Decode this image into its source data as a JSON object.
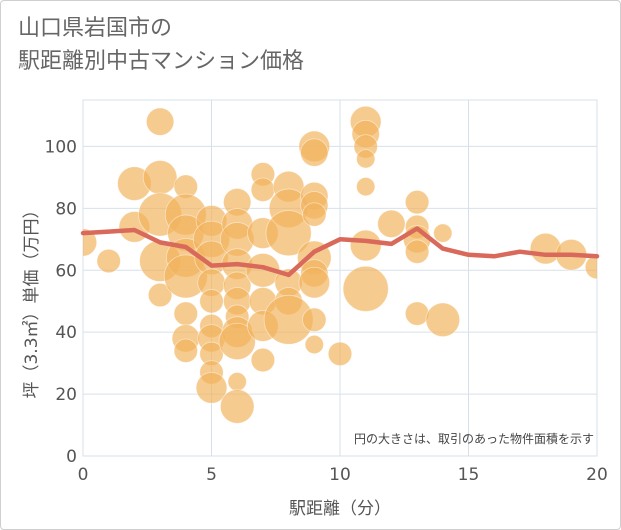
{
  "title_lines": [
    "山口県岩国市の",
    "駅距離別中古マンション価格"
  ],
  "chart_data": {
    "type": "scatter",
    "title": "山口県岩国市の駅距離別中古マンション価格",
    "xlabel": "駅距離（分）",
    "ylabel": "坪（3.3㎡）単価（万円）",
    "xlim": [
      0,
      20
    ],
    "ylim": [
      0,
      115
    ],
    "xticks": [
      0,
      5,
      10,
      15,
      20
    ],
    "yticks": [
      0,
      20,
      40,
      60,
      80,
      100
    ],
    "grid": true,
    "note": "円の大きさは、取引のあった物件面積を示す",
    "colors": {
      "bubble": "#f2b25c",
      "line": "#d9695a",
      "grid": "#d7e0ea"
    },
    "bubbles": [
      {
        "x": 0,
        "y": 69,
        "s": 3
      },
      {
        "x": 1,
        "y": 63,
        "s": 2
      },
      {
        "x": 2,
        "y": 88,
        "s": 5
      },
      {
        "x": 2,
        "y": 74,
        "s": 4
      },
      {
        "x": 3,
        "y": 108,
        "s": 3
      },
      {
        "x": 3,
        "y": 90,
        "s": 5
      },
      {
        "x": 3,
        "y": 78,
        "s": 9
      },
      {
        "x": 3,
        "y": 63,
        "s": 8
      },
      {
        "x": 3,
        "y": 52,
        "s": 2
      },
      {
        "x": 4,
        "y": 87,
        "s": 2
      },
      {
        "x": 4,
        "y": 78,
        "s": 8
      },
      {
        "x": 4,
        "y": 72,
        "s": 6
      },
      {
        "x": 4,
        "y": 64,
        "s": 7
      },
      {
        "x": 4,
        "y": 58,
        "s": 9
      },
      {
        "x": 4,
        "y": 46,
        "s": 2
      },
      {
        "x": 4,
        "y": 38,
        "s": 3
      },
      {
        "x": 4,
        "y": 34,
        "s": 2
      },
      {
        "x": 5,
        "y": 76,
        "s": 4
      },
      {
        "x": 5,
        "y": 70,
        "s": 6
      },
      {
        "x": 5,
        "y": 64,
        "s": 5
      },
      {
        "x": 5,
        "y": 56,
        "s": 3
      },
      {
        "x": 5,
        "y": 50,
        "s": 2
      },
      {
        "x": 5,
        "y": 42,
        "s": 2
      },
      {
        "x": 5,
        "y": 38,
        "s": 3
      },
      {
        "x": 5,
        "y": 33,
        "s": 2
      },
      {
        "x": 5,
        "y": 27,
        "s": 2
      },
      {
        "x": 5,
        "y": 22,
        "s": 4
      },
      {
        "x": 6,
        "y": 82,
        "s": 3
      },
      {
        "x": 6,
        "y": 75,
        "s": 4
      },
      {
        "x": 6,
        "y": 70,
        "s": 5
      },
      {
        "x": 6,
        "y": 62,
        "s": 4
      },
      {
        "x": 6,
        "y": 55,
        "s": 3
      },
      {
        "x": 6,
        "y": 50,
        "s": 3
      },
      {
        "x": 6,
        "y": 45,
        "s": 2
      },
      {
        "x": 6,
        "y": 40,
        "s": 4
      },
      {
        "x": 6,
        "y": 37,
        "s": 6
      },
      {
        "x": 6,
        "y": 24,
        "s": 1
      },
      {
        "x": 6,
        "y": 16,
        "s": 5
      },
      {
        "x": 7,
        "y": 91,
        "s": 2
      },
      {
        "x": 7,
        "y": 86,
        "s": 2
      },
      {
        "x": 7,
        "y": 72,
        "s": 4
      },
      {
        "x": 7,
        "y": 60,
        "s": 5
      },
      {
        "x": 7,
        "y": 50,
        "s": 3
      },
      {
        "x": 7,
        "y": 42,
        "s": 4
      },
      {
        "x": 7,
        "y": 31,
        "s": 2
      },
      {
        "x": 8,
        "y": 87,
        "s": 4
      },
      {
        "x": 8,
        "y": 80,
        "s": 7
      },
      {
        "x": 8,
        "y": 72,
        "s": 10
      },
      {
        "x": 8,
        "y": 56,
        "s": 3
      },
      {
        "x": 8,
        "y": 50,
        "s": 3
      },
      {
        "x": 8,
        "y": 44,
        "s": 12
      },
      {
        "x": 9,
        "y": 100,
        "s": 4
      },
      {
        "x": 9,
        "y": 98,
        "s": 3
      },
      {
        "x": 9,
        "y": 84,
        "s": 3
      },
      {
        "x": 9,
        "y": 81,
        "s": 3
      },
      {
        "x": 9,
        "y": 78,
        "s": 2
      },
      {
        "x": 9,
        "y": 64,
        "s": 5
      },
      {
        "x": 9,
        "y": 59,
        "s": 3
      },
      {
        "x": 9,
        "y": 56,
        "s": 4
      },
      {
        "x": 9,
        "y": 44,
        "s": 2
      },
      {
        "x": 9,
        "y": 36,
        "s": 1
      },
      {
        "x": 10,
        "y": 33,
        "s": 2
      },
      {
        "x": 11,
        "y": 108,
        "s": 4
      },
      {
        "x": 11,
        "y": 104,
        "s": 3
      },
      {
        "x": 11,
        "y": 100,
        "s": 2
      },
      {
        "x": 11,
        "y": 96,
        "s": 1
      },
      {
        "x": 11,
        "y": 87,
        "s": 1
      },
      {
        "x": 11,
        "y": 68,
        "s": 4
      },
      {
        "x": 11,
        "y": 54,
        "s": 10
      },
      {
        "x": 12,
        "y": 75,
        "s": 3
      },
      {
        "x": 13,
        "y": 82,
        "s": 2
      },
      {
        "x": 13,
        "y": 74,
        "s": 2
      },
      {
        "x": 13,
        "y": 70,
        "s": 3
      },
      {
        "x": 13,
        "y": 66,
        "s": 2
      },
      {
        "x": 13,
        "y": 46,
        "s": 2
      },
      {
        "x": 14,
        "y": 72,
        "s": 1
      },
      {
        "x": 14,
        "y": 44,
        "s": 5
      },
      {
        "x": 18,
        "y": 67,
        "s": 4
      },
      {
        "x": 19,
        "y": 65,
        "s": 4
      },
      {
        "x": 20,
        "y": 61,
        "s": 2
      }
    ],
    "series": [
      {
        "x": [
          0,
          1,
          2,
          3,
          4,
          5,
          6,
          7,
          8,
          9,
          10,
          11,
          12,
          13,
          14,
          15,
          16,
          17,
          18,
          19,
          20
        ],
        "values": [
          72,
          72.5,
          73,
          69,
          67.5,
          61.5,
          62,
          61,
          58.5,
          66,
          70,
          69.5,
          68.5,
          73.5,
          67,
          65,
          64.5,
          66,
          65,
          65,
          64.5
        ]
      }
    ]
  }
}
